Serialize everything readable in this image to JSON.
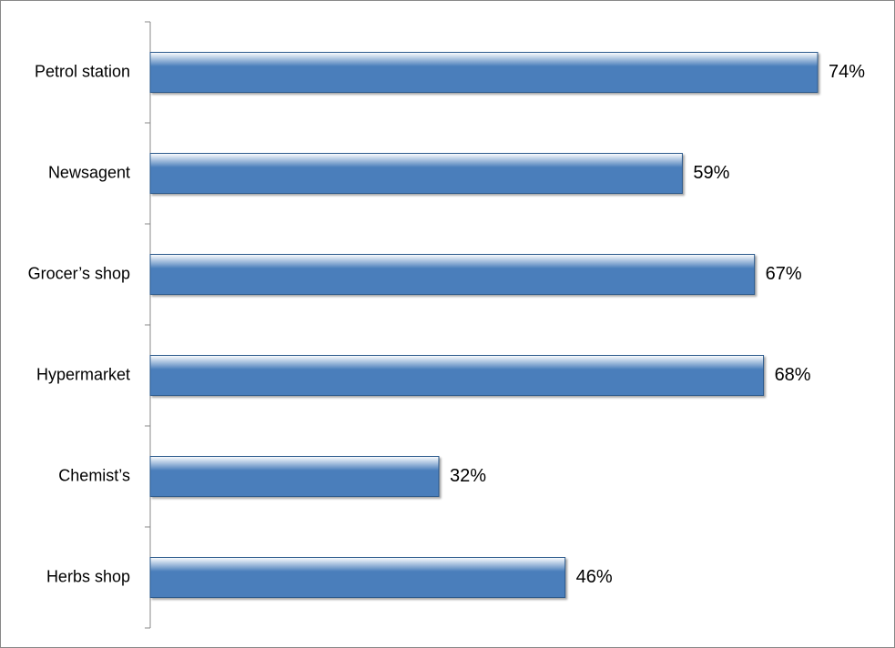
{
  "chart_data": {
    "type": "bar",
    "orientation": "horizontal",
    "categories": [
      "Petrol station",
      "Newsagent",
      "Grocer’s shop",
      "Hypermarket",
      "Chemist’s",
      "Herbs shop"
    ],
    "values": [
      74,
      59,
      67,
      68,
      32,
      46
    ],
    "value_labels": [
      "74%",
      "59%",
      "67%",
      "68%",
      "32%",
      "46%"
    ],
    "color": "#4a7ebb"
  }
}
